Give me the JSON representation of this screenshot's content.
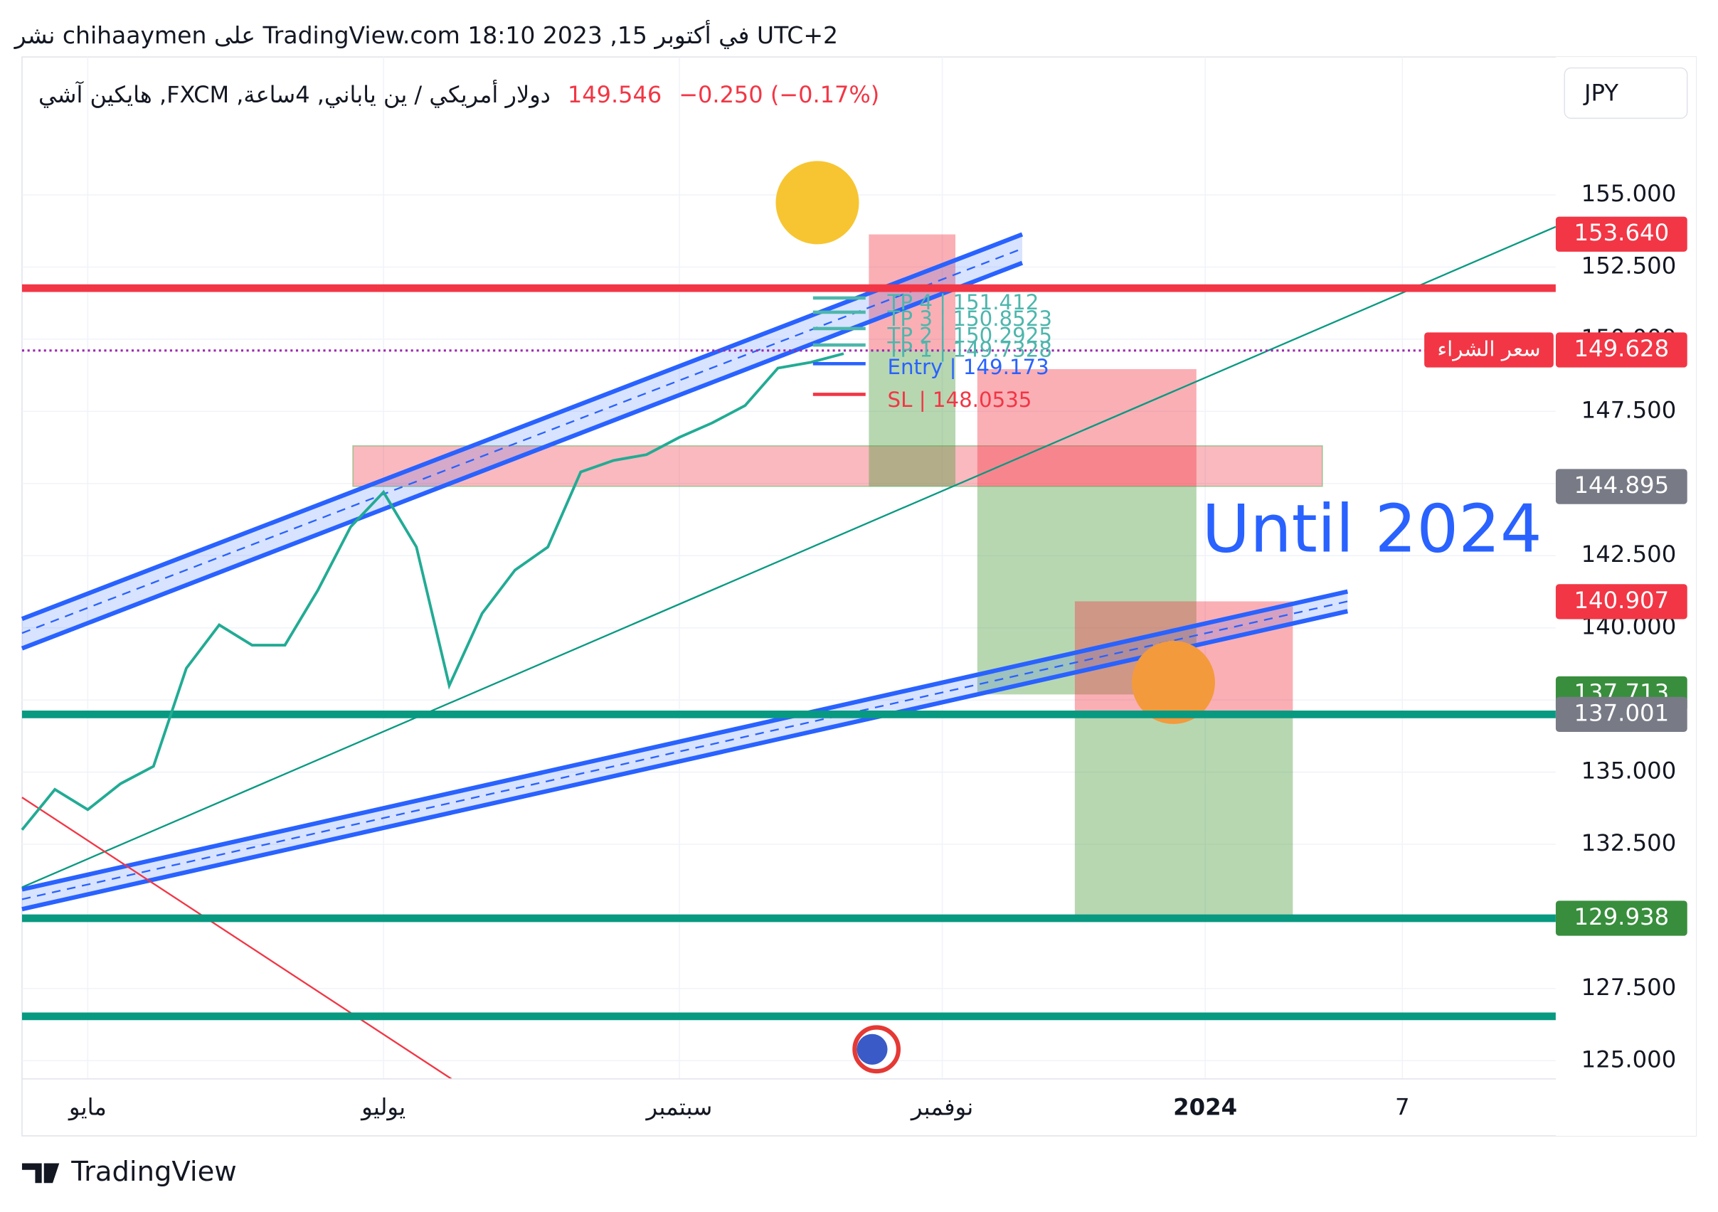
{
  "header": {
    "published": "UTC+2 في أكتوبر 15, 2023 18:10 TradingView.com على chihaaymen نشر",
    "symbol": "دولار أمريكي / ين ياباني, 4ساعة, FXCM, هايكين آشي",
    "price": "149.546",
    "change": "−0.250 (−0.17%)",
    "currency": "JPY",
    "footer": "TradingView"
  },
  "chart_data": {
    "type": "line",
    "color": "#22ab94",
    "categories": [
      null,
      null,
      "مايو",
      null,
      null,
      null,
      null,
      null,
      null,
      null,
      null,
      "يوليو",
      null,
      null,
      null,
      null,
      null,
      null,
      null,
      null,
      "سبتمبر",
      null,
      null,
      null,
      null,
      null,
      null,
      null,
      "نوفمبر",
      null,
      null,
      null,
      null,
      null,
      null,
      null,
      "2024",
      null,
      null,
      null,
      null,
      null,
      "7",
      null,
      null,
      null,
      null
    ],
    "values": [
      133.0,
      134.4,
      133.7,
      134.6,
      135.2,
      138.6,
      140.1,
      139.4,
      139.4,
      141.3,
      143.5,
      144.7,
      142.8,
      138.0,
      140.5,
      142.0,
      142.8,
      145.4,
      145.8,
      146.0,
      146.6,
      147.1,
      147.7,
      149.0,
      149.2,
      149.5,
      null,
      null,
      null,
      null,
      null,
      null,
      null,
      null,
      null,
      null,
      null,
      null,
      null,
      null,
      null,
      null,
      null,
      null,
      null,
      null,
      null
    ],
    "ylim": [
      124.37,
      159.4
    ],
    "yticks": [
      {
        "value": 125,
        "label": "125.000"
      },
      {
        "value": 127.5,
        "label": "127.500"
      },
      {
        "value": 130,
        "label": "130.000"
      },
      {
        "value": 132.5,
        "label": "132.500"
      },
      {
        "value": 135,
        "label": "135.000"
      },
      {
        "value": 137.5,
        "label": "137.500"
      },
      {
        "value": 140,
        "label": "140.000"
      },
      {
        "value": 142.5,
        "label": "142.500"
      },
      {
        "value": 145,
        "label": "145.000"
      },
      {
        "value": 147.5,
        "label": "147.500"
      },
      {
        "value": 150,
        "label": "150.000"
      },
      {
        "value": 152.5,
        "label": "152.500"
      },
      {
        "value": 155,
        "label": "155.000"
      }
    ],
    "grid": true,
    "levels": [
      {
        "value": 151.77,
        "color": "#f23645"
      },
      {
        "value": 137.001,
        "color": "#089981"
      },
      {
        "value": 129.938,
        "color": "#089981"
      },
      {
        "value": 126.54,
        "color": "#089981"
      }
    ],
    "price_tags": [
      {
        "value": 153.64,
        "label": "153.640",
        "color": "#f23645"
      },
      {
        "value": 149.628,
        "label": "149.628",
        "color": "#f23645"
      },
      {
        "value": 144.895,
        "label": "144.895",
        "color": "#787b86"
      },
      {
        "value": 140.907,
        "label": "140.907",
        "color": "#f23645"
      },
      {
        "value": 137.713,
        "label": "137.713",
        "color": "#388e3c"
      },
      {
        "value": 137.001,
        "label": "137.001",
        "color": "#787b86"
      },
      {
        "value": 129.938,
        "label": "129.938",
        "color": "#388e3c"
      }
    ],
    "buy_label": "سعر الشراء",
    "annotations": [
      {
        "text": "TP 4 | 151.412",
        "color": "#4db6ac"
      },
      {
        "text": "TP 3 | 150.8523",
        "color": "#4db6ac"
      },
      {
        "text": "TP 2 | 150.2925",
        "color": "#4db6ac"
      },
      {
        "text": "TP 1 | 149.7328",
        "color": "#4db6ac"
      },
      {
        "text": "Entry | 149.173",
        "color": "#2962ff"
      },
      {
        "text": "SL | 148.0535",
        "color": "#f23645"
      }
    ],
    "note": "Until 2024"
  }
}
